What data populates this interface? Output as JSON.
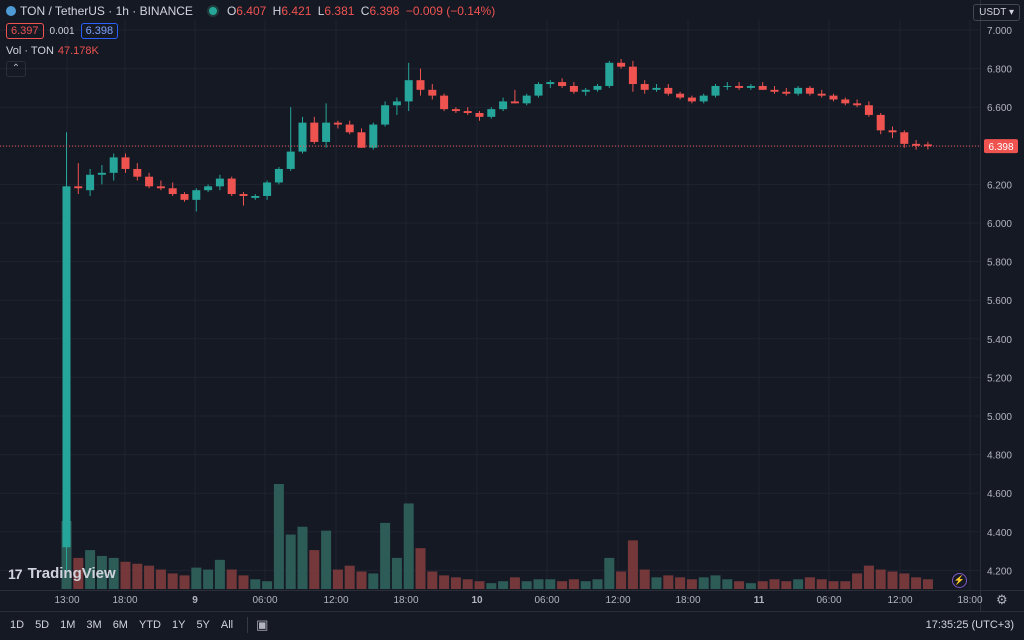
{
  "header": {
    "symbol_title": "TON / TetherUS · 1h · BINANCE",
    "ohlc": [
      {
        "key": "O",
        "value": "6.407"
      },
      {
        "key": "H",
        "value": "6.421"
      },
      {
        "key": "L",
        "value": "6.381"
      },
      {
        "key": "C",
        "value": "6.398"
      }
    ],
    "change": "−0.009 (−0.14%)",
    "sell_price": "6.397",
    "spread": "0.001",
    "buy_price": "6.398",
    "volume_label": "Vol · TON",
    "volume_value": "47.178K",
    "collapse_icon": "chevron-up-icon"
  },
  "currency_selector": "USDT",
  "last_price_tag": "6.398",
  "branding": "TradingView",
  "time_ranges": [
    "1D",
    "5D",
    "1M",
    "3M",
    "6M",
    "YTD",
    "1Y",
    "5Y",
    "All"
  ],
  "clock": "17:35:25 (UTC+3)",
  "colors": {
    "up": "#26a69a",
    "down": "#ef5350",
    "background": "#151924"
  },
  "chart_data": {
    "type": "candlestick",
    "y_ticks": [
      "7.000",
      "6.800",
      "6.600",
      "6.400",
      "6.200",
      "6.000",
      "5.800",
      "5.600",
      "5.400",
      "5.200",
      "5.000",
      "4.800",
      "4.600",
      "4.400",
      "4.200"
    ],
    "ylim": [
      4.09,
      7.04
    ],
    "x_ticks": [
      "13:00",
      "18:00",
      "9",
      "06:00",
      "12:00",
      "18:00",
      "10",
      "06:00",
      "12:00",
      "18:00",
      "11",
      "06:00",
      "12:00",
      "18:00"
    ],
    "candles": [
      {
        "o": 4.32,
        "h": 6.47,
        "l": 4.2,
        "c": 6.19,
        "v": 0.35
      },
      {
        "o": 6.19,
        "h": 6.31,
        "l": 6.15,
        "c": 6.18,
        "v": 0.16
      },
      {
        "o": 6.17,
        "h": 6.28,
        "l": 6.14,
        "c": 6.25,
        "v": 0.2
      },
      {
        "o": 6.25,
        "h": 6.3,
        "l": 6.2,
        "c": 6.26,
        "v": 0.17
      },
      {
        "o": 6.26,
        "h": 6.36,
        "l": 6.22,
        "c": 6.34,
        "v": 0.16
      },
      {
        "o": 6.34,
        "h": 6.36,
        "l": 6.26,
        "c": 6.28,
        "v": 0.14
      },
      {
        "o": 6.28,
        "h": 6.31,
        "l": 6.22,
        "c": 6.24,
        "v": 0.13
      },
      {
        "o": 6.24,
        "h": 6.26,
        "l": 6.18,
        "c": 6.19,
        "v": 0.12
      },
      {
        "o": 6.19,
        "h": 6.22,
        "l": 6.17,
        "c": 6.18,
        "v": 0.1
      },
      {
        "o": 6.18,
        "h": 6.21,
        "l": 6.14,
        "c": 6.15,
        "v": 0.08
      },
      {
        "o": 6.15,
        "h": 6.16,
        "l": 6.11,
        "c": 6.12,
        "v": 0.07
      },
      {
        "o": 6.12,
        "h": 6.18,
        "l": 6.06,
        "c": 6.17,
        "v": 0.11
      },
      {
        "o": 6.17,
        "h": 6.2,
        "l": 6.16,
        "c": 6.19,
        "v": 0.1
      },
      {
        "o": 6.19,
        "h": 6.25,
        "l": 6.17,
        "c": 6.23,
        "v": 0.15
      },
      {
        "o": 6.23,
        "h": 6.24,
        "l": 6.14,
        "c": 6.15,
        "v": 0.1
      },
      {
        "o": 6.15,
        "h": 6.16,
        "l": 6.09,
        "c": 6.14,
        "v": 0.07
      },
      {
        "o": 6.13,
        "h": 6.15,
        "l": 6.12,
        "c": 6.14,
        "v": 0.05
      },
      {
        "o": 6.14,
        "h": 6.22,
        "l": 6.12,
        "c": 6.21,
        "v": 0.04
      },
      {
        "o": 6.21,
        "h": 6.29,
        "l": 6.2,
        "c": 6.28,
        "v": 0.54
      },
      {
        "o": 6.28,
        "h": 6.6,
        "l": 6.27,
        "c": 6.37,
        "v": 0.28
      },
      {
        "o": 6.37,
        "h": 6.55,
        "l": 6.36,
        "c": 6.52,
        "v": 0.32
      },
      {
        "o": 6.52,
        "h": 6.55,
        "l": 6.41,
        "c": 6.42,
        "v": 0.2
      },
      {
        "o": 6.42,
        "h": 6.62,
        "l": 6.39,
        "c": 6.52,
        "v": 0.3
      },
      {
        "o": 6.52,
        "h": 6.53,
        "l": 6.49,
        "c": 6.51,
        "v": 0.1
      },
      {
        "o": 6.51,
        "h": 6.53,
        "l": 6.46,
        "c": 6.47,
        "v": 0.12
      },
      {
        "o": 6.47,
        "h": 6.49,
        "l": 6.39,
        "c": 6.39,
        "v": 0.09
      },
      {
        "o": 6.39,
        "h": 6.52,
        "l": 6.38,
        "c": 6.51,
        "v": 0.08
      },
      {
        "o": 6.51,
        "h": 6.63,
        "l": 6.5,
        "c": 6.61,
        "v": 0.34
      },
      {
        "o": 6.61,
        "h": 6.65,
        "l": 6.56,
        "c": 6.63,
        "v": 0.16
      },
      {
        "o": 6.63,
        "h": 6.83,
        "l": 6.58,
        "c": 6.74,
        "v": 0.44
      },
      {
        "o": 6.74,
        "h": 6.8,
        "l": 6.66,
        "c": 6.69,
        "v": 0.21
      },
      {
        "o": 6.69,
        "h": 6.72,
        "l": 6.64,
        "c": 6.66,
        "v": 0.09
      },
      {
        "o": 6.66,
        "h": 6.67,
        "l": 6.58,
        "c": 6.59,
        "v": 0.07
      },
      {
        "o": 6.59,
        "h": 6.6,
        "l": 6.57,
        "c": 6.58,
        "v": 0.06
      },
      {
        "o": 6.58,
        "h": 6.6,
        "l": 6.56,
        "c": 6.57,
        "v": 0.05
      },
      {
        "o": 6.57,
        "h": 6.58,
        "l": 6.53,
        "c": 6.55,
        "v": 0.04
      },
      {
        "o": 6.55,
        "h": 6.6,
        "l": 6.54,
        "c": 6.59,
        "v": 0.03
      },
      {
        "o": 6.59,
        "h": 6.65,
        "l": 6.58,
        "c": 6.63,
        "v": 0.04
      },
      {
        "o": 6.63,
        "h": 6.69,
        "l": 6.62,
        "c": 6.62,
        "v": 0.06
      },
      {
        "o": 6.62,
        "h": 6.67,
        "l": 6.61,
        "c": 6.66,
        "v": 0.04
      },
      {
        "o": 6.66,
        "h": 6.73,
        "l": 6.65,
        "c": 6.72,
        "v": 0.05
      },
      {
        "o": 6.72,
        "h": 6.74,
        "l": 6.7,
        "c": 6.73,
        "v": 0.05
      },
      {
        "o": 6.73,
        "h": 6.75,
        "l": 6.7,
        "c": 6.71,
        "v": 0.04
      },
      {
        "o": 6.71,
        "h": 6.73,
        "l": 6.67,
        "c": 6.68,
        "v": 0.05
      },
      {
        "o": 6.68,
        "h": 6.7,
        "l": 6.66,
        "c": 6.69,
        "v": 0.04
      },
      {
        "o": 6.69,
        "h": 6.72,
        "l": 6.68,
        "c": 6.71,
        "v": 0.05
      },
      {
        "o": 6.71,
        "h": 6.84,
        "l": 6.7,
        "c": 6.83,
        "v": 0.16
      },
      {
        "o": 6.83,
        "h": 6.85,
        "l": 6.8,
        "c": 6.81,
        "v": 0.09
      },
      {
        "o": 6.81,
        "h": 6.84,
        "l": 6.68,
        "c": 6.72,
        "v": 0.25
      },
      {
        "o": 6.72,
        "h": 6.74,
        "l": 6.67,
        "c": 6.69,
        "v": 0.1
      },
      {
        "o": 6.69,
        "h": 6.72,
        "l": 6.68,
        "c": 6.7,
        "v": 0.06
      },
      {
        "o": 6.7,
        "h": 6.72,
        "l": 6.66,
        "c": 6.67,
        "v": 0.07
      },
      {
        "o": 6.67,
        "h": 6.68,
        "l": 6.64,
        "c": 6.65,
        "v": 0.06
      },
      {
        "o": 6.65,
        "h": 6.66,
        "l": 6.62,
        "c": 6.63,
        "v": 0.05
      },
      {
        "o": 6.63,
        "h": 6.67,
        "l": 6.62,
        "c": 6.66,
        "v": 0.06
      },
      {
        "o": 6.66,
        "h": 6.72,
        "l": 6.65,
        "c": 6.71,
        "v": 0.07
      },
      {
        "o": 6.71,
        "h": 6.73,
        "l": 6.69,
        "c": 6.71,
        "v": 0.05
      },
      {
        "o": 6.71,
        "h": 6.73,
        "l": 6.69,
        "c": 6.7,
        "v": 0.04
      },
      {
        "o": 6.7,
        "h": 6.72,
        "l": 6.69,
        "c": 6.71,
        "v": 0.03
      },
      {
        "o": 6.71,
        "h": 6.73,
        "l": 6.69,
        "c": 6.69,
        "v": 0.04
      },
      {
        "o": 6.69,
        "h": 6.71,
        "l": 6.67,
        "c": 6.68,
        "v": 0.05
      },
      {
        "o": 6.68,
        "h": 6.7,
        "l": 6.66,
        "c": 6.67,
        "v": 0.04
      },
      {
        "o": 6.67,
        "h": 6.71,
        "l": 6.66,
        "c": 6.7,
        "v": 0.05
      },
      {
        "o": 6.7,
        "h": 6.71,
        "l": 6.66,
        "c": 6.67,
        "v": 0.06
      },
      {
        "o": 6.67,
        "h": 6.69,
        "l": 6.65,
        "c": 6.66,
        "v": 0.05
      },
      {
        "o": 6.66,
        "h": 6.67,
        "l": 6.63,
        "c": 6.64,
        "v": 0.04
      },
      {
        "o": 6.64,
        "h": 6.65,
        "l": 6.61,
        "c": 6.62,
        "v": 0.04
      },
      {
        "o": 6.62,
        "h": 6.64,
        "l": 6.6,
        "c": 6.61,
        "v": 0.08
      },
      {
        "o": 6.61,
        "h": 6.63,
        "l": 6.55,
        "c": 6.56,
        "v": 0.12
      },
      {
        "o": 6.56,
        "h": 6.57,
        "l": 6.46,
        "c": 6.48,
        "v": 0.1
      },
      {
        "o": 6.48,
        "h": 6.5,
        "l": 6.44,
        "c": 6.47,
        "v": 0.09
      },
      {
        "o": 6.47,
        "h": 6.48,
        "l": 6.39,
        "c": 6.41,
        "v": 0.08
      },
      {
        "o": 6.41,
        "h": 6.43,
        "l": 6.38,
        "c": 6.4,
        "v": 0.06
      },
      {
        "o": 6.407,
        "h": 6.421,
        "l": 6.381,
        "c": 6.398,
        "v": 0.05
      }
    ]
  }
}
